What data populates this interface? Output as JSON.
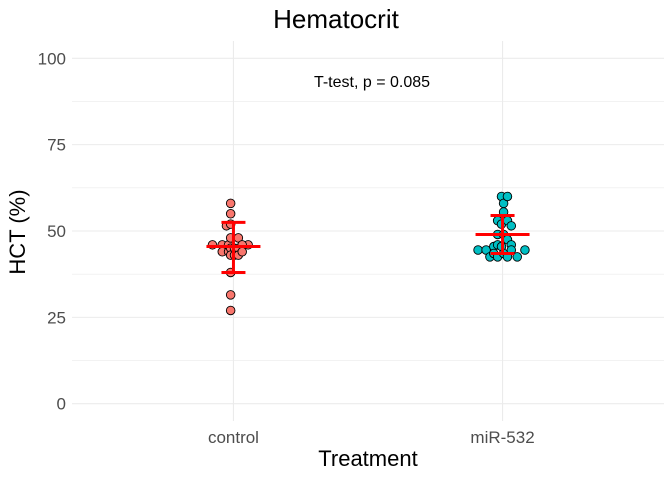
{
  "chart_data": {
    "type": "scatter",
    "title": "Hematocrit",
    "xlabel": "Treatment",
    "ylabel": "HCT (%)",
    "categories": [
      "control",
      "miR-532"
    ],
    "ylim": [
      -5,
      105
    ],
    "yticks": [
      0,
      25,
      50,
      75,
      100
    ],
    "grid": true,
    "annotation": "T-test, p = 0.085",
    "series": [
      {
        "category": "control",
        "color": "#f8766d",
        "points": [
          {
            "offset": -0.6,
            "y": 46
          },
          {
            "offset": 0.42,
            "y": 46
          },
          {
            "offset": -0.32,
            "y": 46
          },
          {
            "offset": -0.32,
            "y": 44
          },
          {
            "offset": -0.14,
            "y": 46
          },
          {
            "offset": -0.14,
            "y": 44
          },
          {
            "offset": -0.2,
            "y": 51.5
          },
          {
            "offset": -0.08,
            "y": 58
          },
          {
            "offset": -0.08,
            "y": 55
          },
          {
            "offset": -0.08,
            "y": 52
          },
          {
            "offset": -0.08,
            "y": 48
          },
          {
            "offset": -0.08,
            "y": 45
          },
          {
            "offset": -0.08,
            "y": 43
          },
          {
            "offset": -0.08,
            "y": 38
          },
          {
            "offset": -0.08,
            "y": 31.5
          },
          {
            "offset": -0.08,
            "y": 27
          },
          {
            "offset": 0.03,
            "y": 45
          },
          {
            "offset": 0.03,
            "y": 43
          },
          {
            "offset": 0.14,
            "y": 48
          },
          {
            "offset": 0.14,
            "y": 45
          },
          {
            "offset": 0.14,
            "y": 43
          },
          {
            "offset": 0.25,
            "y": 46
          },
          {
            "offset": 0.25,
            "y": 44
          }
        ],
        "mean": 45.5,
        "sd_low": 38,
        "sd_high": 52.5
      },
      {
        "category": "miR-532",
        "color": "#00bfc4",
        "points": [
          {
            "offset": -0.7,
            "y": 44.5
          },
          {
            "offset": -0.47,
            "y": 44.5
          },
          {
            "offset": -0.36,
            "y": 42.5
          },
          {
            "offset": -0.25,
            "y": 45.5
          },
          {
            "offset": -0.25,
            "y": 43.5
          },
          {
            "offset": -0.14,
            "y": 53
          },
          {
            "offset": -0.14,
            "y": 49
          },
          {
            "offset": -0.14,
            "y": 46
          },
          {
            "offset": -0.14,
            "y": 42.5
          },
          {
            "offset": -0.03,
            "y": 60
          },
          {
            "offset": -0.03,
            "y": 52
          },
          {
            "offset": -0.03,
            "y": 45.5
          },
          {
            "offset": 0.03,
            "y": 58
          },
          {
            "offset": 0.03,
            "y": 55.5
          },
          {
            "offset": 0.03,
            "y": 49
          },
          {
            "offset": 0.03,
            "y": 43.5
          },
          {
            "offset": 0.14,
            "y": 60
          },
          {
            "offset": 0.14,
            "y": 53
          },
          {
            "offset": 0.14,
            "y": 47.5
          },
          {
            "offset": 0.14,
            "y": 42.5
          },
          {
            "offset": 0.25,
            "y": 51.5
          },
          {
            "offset": 0.25,
            "y": 46
          },
          {
            "offset": 0.25,
            "y": 44.5
          },
          {
            "offset": 0.42,
            "y": 42.5
          },
          {
            "offset": 0.64,
            "y": 44.5
          }
        ],
        "mean": 49,
        "sd_low": 43.5,
        "sd_high": 54.5
      }
    ],
    "summary_color": "#ff0000",
    "grid_color": "#ebebeb"
  }
}
